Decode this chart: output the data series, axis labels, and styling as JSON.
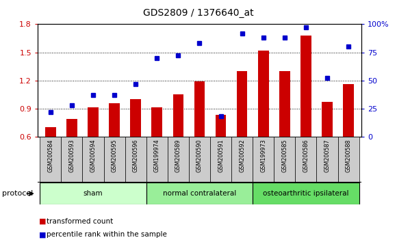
{
  "title": "GDS2809 / 1376640_at",
  "samples": [
    "GSM200584",
    "GSM200593",
    "GSM200594",
    "GSM200595",
    "GSM200596",
    "GSM199974",
    "GSM200589",
    "GSM200590",
    "GSM200591",
    "GSM200592",
    "GSM199973",
    "GSM200585",
    "GSM200586",
    "GSM200587",
    "GSM200588"
  ],
  "bar_values": [
    0.7,
    0.79,
    0.91,
    0.96,
    1.0,
    0.91,
    1.05,
    1.19,
    0.83,
    1.3,
    1.52,
    1.3,
    1.68,
    0.97,
    1.16
  ],
  "dot_values": [
    22,
    28,
    37,
    37,
    47,
    70,
    72,
    83,
    18,
    92,
    88,
    88,
    97,
    52,
    80
  ],
  "bar_color": "#cc0000",
  "dot_color": "#0000cc",
  "ylim_left": [
    0.6,
    1.8
  ],
  "ylim_right": [
    0,
    100
  ],
  "yticks_left": [
    0.6,
    0.9,
    1.2,
    1.5,
    1.8
  ],
  "yticks_right": [
    0,
    25,
    50,
    75,
    100
  ],
  "ytick_labels_right": [
    "0",
    "25",
    "50",
    "75",
    "100%"
  ],
  "groups": [
    {
      "label": "sham",
      "start": 0,
      "end": 4
    },
    {
      "label": "normal contralateral",
      "start": 5,
      "end": 9
    },
    {
      "label": "osteoarthritic ipsilateral",
      "start": 10,
      "end": 14
    }
  ],
  "group_colors": [
    "#ccffcc",
    "#99ee99",
    "#66dd66"
  ],
  "protocol_label": "protocol",
  "legend_bar_label": "transformed count",
  "legend_dot_label": "percentile rank within the sample",
  "tick_label_color_left": "#cc0000",
  "tick_label_color_right": "#0000cc",
  "xtick_box_color": "#cccccc",
  "plot_border_color": "#000000"
}
